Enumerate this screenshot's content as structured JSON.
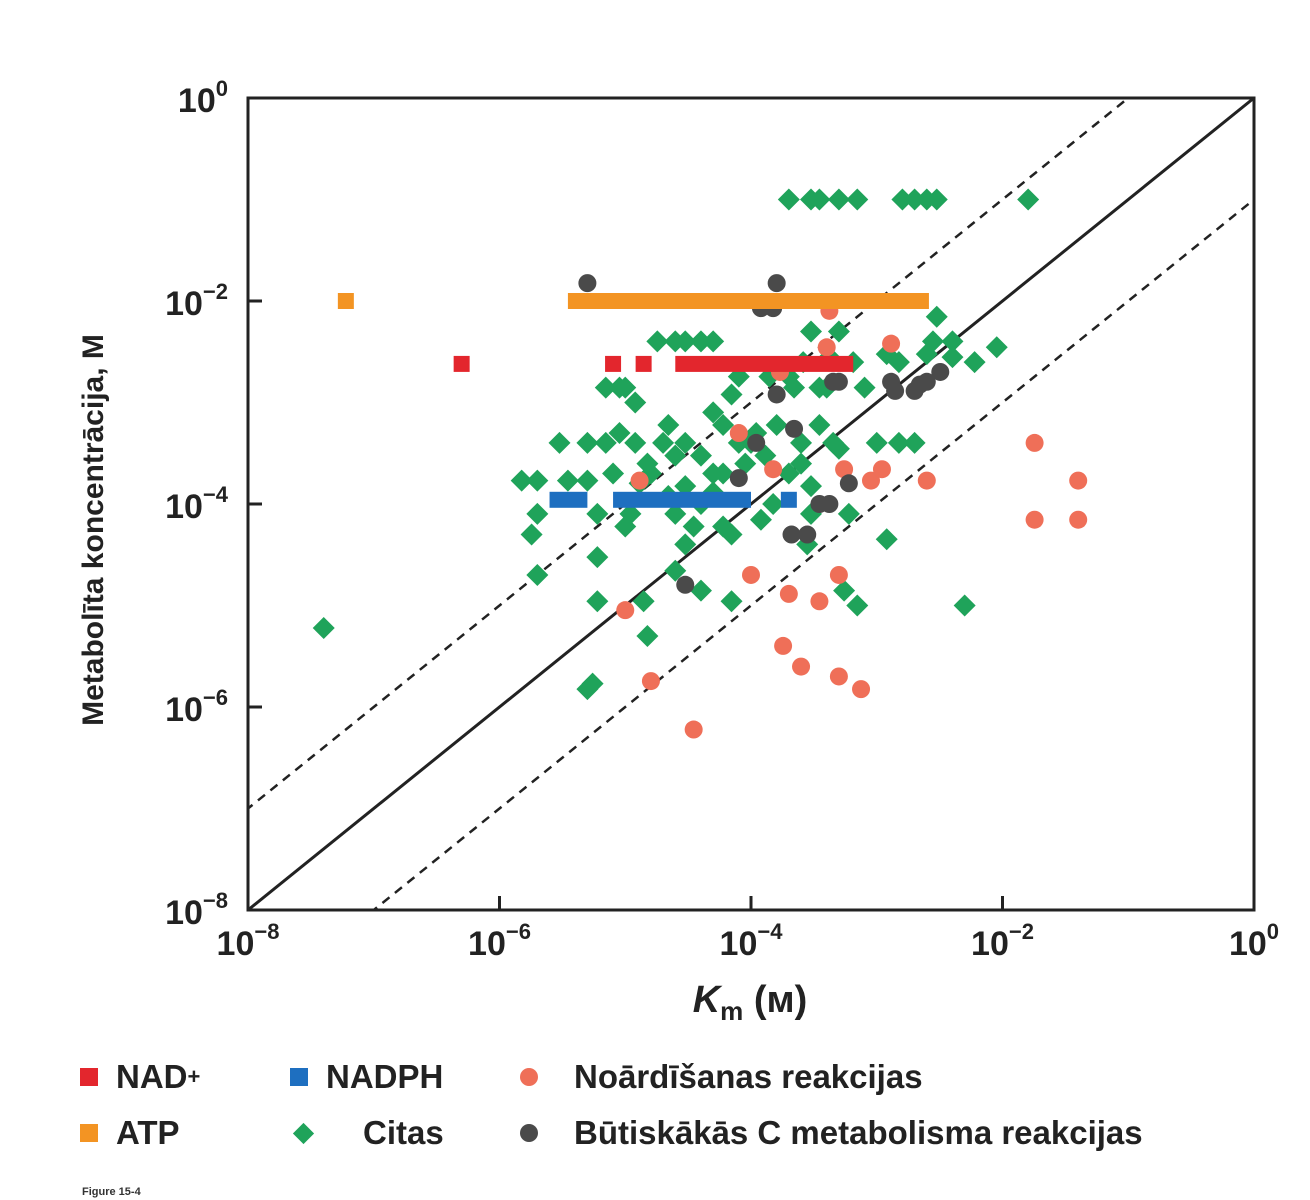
{
  "chart_data": {
    "type": "scatter",
    "xscale": "log",
    "yscale": "log",
    "xlim": [
      1e-08,
      1
    ],
    "ylim": [
      1e-08,
      1
    ],
    "xlabel": {
      "main": "K",
      "sub": "m",
      "unit": " (м)"
    },
    "ylabel": "Metabolīta koncentrācija, M",
    "x_ticks": [
      {
        "base": "10",
        "exp": "−8",
        "value": 1e-08
      },
      {
        "base": "10",
        "exp": "−6",
        "value": 1e-06
      },
      {
        "base": "10",
        "exp": "−4",
        "value": 0.0001
      },
      {
        "base": "10",
        "exp": "−2",
        "value": 0.01
      },
      {
        "base": "10",
        "exp": "0",
        "value": 1
      }
    ],
    "y_ticks": [
      {
        "base": "10",
        "exp": "0",
        "value": 1
      },
      {
        "base": "10",
        "exp": "−2",
        "value": 0.01
      },
      {
        "base": "10",
        "exp": "−4",
        "value": 0.0001
      },
      {
        "base": "10",
        "exp": "−6",
        "value": 1e-06
      },
      {
        "base": "10",
        "exp": "−8",
        "value": 1e-08
      }
    ],
    "reference_lines": [
      {
        "name": "y = x",
        "style": "solid",
        "factor": 1
      },
      {
        "name": "y = 10x",
        "style": "dashed",
        "factor": 10
      },
      {
        "name": "y = x/10",
        "style": "dashed",
        "factor": 0.1
      }
    ],
    "series": [
      {
        "name": "Citas",
        "marker": "diamond",
        "color": "#1fa35a",
        "points": [
          [
            4e-08,
            6e-06
          ],
          [
            1.5e-06,
            0.00017
          ],
          [
            2e-06,
            0.00017
          ],
          [
            2e-06,
            8e-05
          ],
          [
            1.8e-06,
            5e-05
          ],
          [
            2e-06,
            2e-05
          ],
          [
            3.5e-06,
            0.00017
          ],
          [
            5e-06,
            0.00017
          ],
          [
            3e-06,
            0.0004
          ],
          [
            5e-06,
            0.0004
          ],
          [
            7e-06,
            0.0004
          ],
          [
            7e-06,
            0.0014
          ],
          [
            9e-06,
            0.0014
          ],
          [
            6e-06,
            8e-05
          ],
          [
            6e-06,
            3e-05
          ],
          [
            6e-06,
            1.1e-05
          ],
          [
            5e-06,
            1.5e-06
          ],
          [
            5.5e-06,
            1.7e-06
          ],
          [
            9e-06,
            0.0005
          ],
          [
            1.2e-05,
            0.0004
          ],
          [
            1.5e-05,
            0.00025
          ],
          [
            1.3e-05,
            0.00016
          ],
          [
            1.1e-05,
            8e-05
          ],
          [
            1.4e-05,
            1.1e-05
          ],
          [
            1.5e-05,
            5e-06
          ],
          [
            1.8e-05,
            0.004
          ],
          [
            2.5e-05,
            0.004
          ],
          [
            3e-05,
            0.004
          ],
          [
            4e-05,
            0.004
          ],
          [
            5e-05,
            0.004
          ],
          [
            2e-05,
            0.0004
          ],
          [
            3e-05,
            0.0004
          ],
          [
            4e-05,
            0.0003
          ],
          [
            3e-05,
            0.00015
          ],
          [
            4e-05,
            0.0001
          ],
          [
            2.5e-05,
            8e-05
          ],
          [
            3e-05,
            4e-05
          ],
          [
            2.5e-05,
            2.2e-05
          ],
          [
            4e-05,
            1.4e-05
          ],
          [
            5e-05,
            0.0002
          ],
          [
            6e-05,
            0.0002
          ],
          [
            7e-05,
            0.0012
          ],
          [
            8e-05,
            0.0004
          ],
          [
            7e-05,
            5e-05
          ],
          [
            7e-05,
            1.1e-05
          ],
          [
            9e-05,
            0.00025
          ],
          [
            0.00011,
            0.0005
          ],
          [
            0.00013,
            0.0003
          ],
          [
            0.00015,
            0.0001
          ],
          [
            0.0002,
            0.0002
          ],
          [
            0.00022,
            0.0014
          ],
          [
            0.00025,
            0.0004
          ],
          [
            0.0003,
            0.00015
          ],
          [
            0.0003,
            8e-05
          ],
          [
            0.00035,
            0.0014
          ],
          [
            0.0004,
            0.0014
          ],
          [
            0.00045,
            0.0004
          ],
          [
            0.0005,
            0.00035
          ],
          [
            0.0006,
            8e-05
          ],
          [
            0.00055,
            1.4e-05
          ],
          [
            0.0007,
            1e-05
          ],
          [
            0.0008,
            0.0014
          ],
          [
            0.001,
            0.0004
          ],
          [
            0.0012,
            4.5e-05
          ],
          [
            0.0015,
            0.0004
          ],
          [
            0.002,
            0.0004
          ],
          [
            0.0028,
            0.004
          ],
          [
            0.004,
            0.004
          ],
          [
            0.005,
            1e-05
          ],
          [
            0.003,
            0.007
          ],
          [
            0.006,
            0.0025
          ],
          [
            0.009,
            0.0035
          ],
          [
            0.0002,
            0.1
          ],
          [
            0.0003,
            0.1
          ],
          [
            0.00035,
            0.1
          ],
          [
            0.0005,
            0.1
          ],
          [
            0.0007,
            0.1
          ],
          [
            0.0016,
            0.1
          ],
          [
            0.002,
            0.1
          ],
          [
            0.0025,
            0.1
          ],
          [
            0.003,
            0.1
          ],
          [
            0.016,
            0.1
          ],
          [
            0.0003,
            0.005
          ],
          [
            0.0005,
            0.005
          ],
          [
            0.0012,
            0.003
          ],
          [
            0.0015,
            0.0025
          ],
          [
            0.0025,
            0.003
          ],
          [
            0.004,
            0.0028
          ],
          [
            1e-05,
            0.0014
          ],
          [
            1.2e-05,
            0.001
          ],
          [
            2.2e-05,
            0.0006
          ],
          [
            6e-05,
            0.0006
          ],
          [
            0.00016,
            0.0006
          ],
          [
            0.00035,
            0.0006
          ],
          [
            8e-05,
            0.0018
          ],
          [
            0.0002,
            0.0018
          ],
          [
            5e-05,
            0.0008
          ],
          [
            0.00025,
            0.00025
          ],
          [
            8e-06,
            0.0002
          ],
          [
            1.6e-05,
            0.0002
          ],
          [
            2.5e-05,
            0.0003
          ],
          [
            3.5e-05,
            6e-05
          ],
          [
            0.00012,
            7e-05
          ],
          [
            0.00028,
            4e-05
          ],
          [
            1e-05,
            6e-05
          ],
          [
            2.2e-05,
            0.00012
          ],
          [
            5e-05,
            0.00013
          ],
          [
            6e-05,
            6e-05
          ],
          [
            0.0001,
            0.0004
          ],
          [
            0.00014,
            0.0018
          ],
          [
            0.00026,
            0.0025
          ],
          [
            0.00042,
            0.0028
          ],
          [
            0.00065,
            0.0025
          ]
        ]
      },
      {
        "name": "Noārdīšanas reakcijas",
        "marker": "circle",
        "color": "#ef6f58",
        "points": [
          [
            1e-05,
            9e-06
          ],
          [
            1.3e-05,
            0.00017
          ],
          [
            1.6e-05,
            1.8e-06
          ],
          [
            3.5e-05,
            6e-07
          ],
          [
            8e-05,
            0.0005
          ],
          [
            0.0001,
            2e-05
          ],
          [
            0.00015,
            0.00022
          ],
          [
            0.00017,
            0.002
          ],
          [
            0.00018,
            4e-06
          ],
          [
            0.0002,
            1.3e-05
          ],
          [
            0.00025,
            2.5e-06
          ],
          [
            0.00035,
            1.1e-05
          ],
          [
            0.0004,
            0.0035
          ],
          [
            0.00042,
            0.008
          ],
          [
            0.0005,
            2e-05
          ],
          [
            0.0005,
            2e-06
          ],
          [
            0.00055,
            0.00022
          ],
          [
            0.00075,
            1.5e-06
          ],
          [
            0.0009,
            0.00017
          ],
          [
            0.0011,
            0.00022
          ],
          [
            0.0013,
            0.0038
          ],
          [
            0.0025,
            0.00017
          ],
          [
            0.018,
            0.0004
          ],
          [
            0.018,
            7e-05
          ],
          [
            0.04,
            0.00017
          ],
          [
            0.04,
            7e-05
          ]
        ]
      },
      {
        "name": "Būtiskākās C metabolisma reakcijas",
        "marker": "circle",
        "color": "#4a4a4a",
        "points": [
          [
            5e-06,
            0.015
          ],
          [
            3e-05,
            1.6e-05
          ],
          [
            8e-05,
            0.00018
          ],
          [
            0.00011,
            0.0004
          ],
          [
            0.00012,
            0.0085
          ],
          [
            0.00015,
            0.0085
          ],
          [
            0.00016,
            0.015
          ],
          [
            0.00016,
            0.0012
          ],
          [
            0.00021,
            5e-05
          ],
          [
            0.00022,
            0.00055
          ],
          [
            0.00028,
            5e-05
          ],
          [
            0.00035,
            0.0001
          ],
          [
            0.00042,
            0.0001
          ],
          [
            0.00045,
            0.0016
          ],
          [
            0.0005,
            0.0016
          ],
          [
            0.0006,
            0.00016
          ],
          [
            0.0013,
            0.0016
          ],
          [
            0.0014,
            0.0013
          ],
          [
            0.002,
            0.0013
          ],
          [
            0.0022,
            0.0015
          ],
          [
            0.0025,
            0.0016
          ],
          [
            0.0032,
            0.002
          ]
        ]
      },
      {
        "name": "ATP",
        "marker": "square",
        "color": "#f39423",
        "points": [
          [
            6e-08,
            0.01
          ]
        ],
        "bars": [
          [
            3.5e-06,
            0.0026,
            0.01
          ]
        ]
      },
      {
        "name": "NAD+",
        "marker": "square",
        "color": "#e3262d",
        "points": [
          [
            5e-07,
            0.0024
          ],
          [
            8e-06,
            0.0024
          ],
          [
            1.4e-05,
            0.0024
          ]
        ],
        "bars": [
          [
            2.5e-05,
            0.00065,
            0.0024
          ]
        ]
      },
      {
        "name": "NADPH",
        "marker": "square",
        "color": "#1e6fc0",
        "points": [
          [
            0.0002,
            0.00011
          ]
        ],
        "bars": [
          [
            2.5e-06,
            5e-06,
            0.00011
          ],
          [
            8e-06,
            0.0001,
            0.00011
          ]
        ]
      }
    ]
  },
  "legend": {
    "items": [
      {
        "label": "NAD",
        "sup": "+",
        "marker": "square",
        "color": "#e3262d"
      },
      {
        "label": "NADPH",
        "sup": "",
        "marker": "square",
        "color": "#1e6fc0"
      },
      {
        "label": "Noārdīšanas reakcijas",
        "sup": "",
        "marker": "circle",
        "color": "#ef6f58"
      },
      {
        "label": "ATP",
        "sup": "",
        "marker": "square",
        "color": "#f39423"
      },
      {
        "label": "Citas",
        "sup": "",
        "marker": "diamond",
        "color": "#1fa35a"
      },
      {
        "label": "Būtiskākās C metabolisma reakcijas",
        "sup": "",
        "marker": "circle",
        "color": "#4a4a4a"
      }
    ]
  },
  "caption": "Figure 15-4"
}
